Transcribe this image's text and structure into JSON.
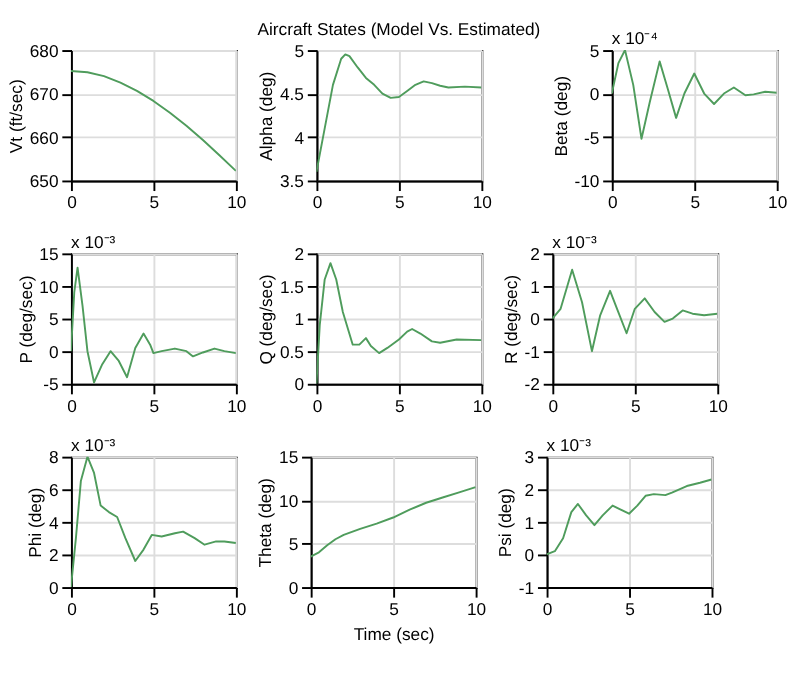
{
  "chart_data": [
    {
      "type": "line",
      "ylabel": "Vt (ft/sec)",
      "xlim": [
        0,
        10
      ],
      "xticks": [
        0,
        5,
        10
      ],
      "ylim": [
        650,
        680
      ],
      "yticks": [
        650,
        660,
        670,
        680
      ],
      "grid": true,
      "x": [
        0,
        1,
        2,
        3,
        4,
        5,
        6,
        7,
        8,
        9,
        10
      ],
      "series": [
        {
          "color": "#4f9c5c",
          "values": [
            675.2,
            674.9,
            674,
            672.5,
            670.6,
            668.3,
            665.6,
            662.6,
            659.3,
            655.8,
            652.2
          ]
        }
      ]
    },
    {
      "type": "line",
      "title": "Aircraft States (Model Vs. Estimated)",
      "ylabel": "Alpha (deg)",
      "xlim": [
        0,
        10
      ],
      "xticks": [
        0,
        5,
        10
      ],
      "ylim": [
        3.5,
        5
      ],
      "yticks": [
        3.5,
        4,
        4.5,
        5
      ],
      "grid": true,
      "x": [
        0,
        0.5,
        1,
        1.5,
        1.75,
        2,
        2.5,
        3,
        3.5,
        4,
        4.5,
        5,
        5.5,
        6,
        6.5,
        7,
        7.5,
        8,
        9,
        10
      ],
      "series": [
        {
          "color": "#4f9c5c",
          "values": [
            3.6,
            4.1,
            4.6,
            4.9,
            4.95,
            4.93,
            4.8,
            4.68,
            4.6,
            4.5,
            4.45,
            4.46,
            4.53,
            4.6,
            4.64,
            4.62,
            4.59,
            4.57,
            4.58,
            4.57
          ]
        }
      ]
    },
    {
      "type": "line",
      "ylabel": "Beta (deg)",
      "annotations": [
        "x 10⁻⁴"
      ],
      "xlim": [
        0,
        10
      ],
      "xticks": [
        0,
        5,
        10
      ],
      "ylim": [
        -10,
        5
      ],
      "yticks": [
        -10,
        -5,
        0,
        5
      ],
      "grid": true,
      "x": [
        0,
        0.4,
        0.8,
        1.3,
        1.8,
        2.3,
        2.9,
        3.4,
        3.9,
        4.4,
        5,
        5.6,
        6.2,
        6.8,
        7.4,
        8.1,
        8.6,
        9.3,
        10
      ],
      "series": [
        {
          "color": "#4f9c5c",
          "values": [
            0,
            3.5,
            5,
            1,
            -5.2,
            -1,
            3.7,
            0.5,
            -2.8,
            0,
            2.3,
            0,
            -1.2,
            0,
            0.7,
            -0.2,
            -0.1,
            0.2,
            0.1
          ]
        }
      ]
    },
    {
      "type": "line",
      "ylabel": "P (deg/sec)",
      "annotations": [
        "x 10⁻³"
      ],
      "xlim": [
        0,
        10
      ],
      "xticks": [
        0,
        5,
        10
      ],
      "ylim": [
        -5,
        15
      ],
      "yticks": [
        -5,
        0,
        5,
        10,
        15
      ],
      "grid": true,
      "x": [
        0,
        0.2,
        0.4,
        0.7,
        1,
        1.4,
        1.9,
        2.4,
        2.9,
        3.4,
        3.9,
        4.4,
        4.8,
        5,
        5.5,
        6.3,
        7,
        7.4,
        8,
        8.7,
        9.3,
        10
      ],
      "series": [
        {
          "color": "#4f9c5c",
          "values": [
            0,
            9,
            12.8,
            7,
            0,
            -4.8,
            -2,
            0,
            -1.5,
            -4,
            0.5,
            2.7,
            1,
            -0.3,
            0,
            0.4,
            0,
            -0.8,
            -0.2,
            0.4,
            0,
            -0.3
          ]
        }
      ]
    },
    {
      "type": "line",
      "ylabel": "Q (deg/sec)",
      "xlim": [
        0,
        10
      ],
      "xticks": [
        0,
        5,
        10
      ],
      "ylim": [
        0,
        2
      ],
      "yticks": [
        0,
        0.5,
        1,
        1.5,
        2
      ],
      "grid": true,
      "x": [
        0,
        0.2,
        0.5,
        0.85,
        1.2,
        1.6,
        2.2,
        2.6,
        3,
        3.3,
        3.8,
        4.3,
        5,
        5.5,
        5.8,
        6.3,
        7,
        7.5,
        8.5,
        10
      ],
      "series": [
        {
          "color": "#4f9c5c",
          "values": [
            0,
            0.9,
            1.6,
            1.85,
            1.6,
            1.1,
            0.6,
            0.6,
            0.7,
            0.58,
            0.47,
            0.55,
            0.68,
            0.8,
            0.84,
            0.77,
            0.65,
            0.63,
            0.68,
            0.67
          ]
        }
      ]
    },
    {
      "type": "line",
      "ylabel": "R (deg/sec)",
      "annotations": [
        "x 10⁻³"
      ],
      "xlim": [
        0,
        10
      ],
      "xticks": [
        0,
        5,
        10
      ],
      "ylim": [
        -2,
        2
      ],
      "yticks": [
        -2,
        -1,
        0,
        1,
        2
      ],
      "grid": true,
      "x": [
        0,
        0.5,
        1.2,
        1.8,
        2.4,
        2.9,
        3.5,
        4,
        4.5,
        5,
        5.6,
        6.2,
        6.8,
        7.3,
        7.9,
        8.5,
        9.2,
        10
      ],
      "series": [
        {
          "color": "#4f9c5c",
          "values": [
            0,
            0.3,
            1.5,
            0.5,
            -1,
            0.1,
            0.85,
            0.2,
            -0.45,
            0.3,
            0.62,
            0.2,
            -0.1,
            0,
            0.25,
            0.15,
            0.1,
            0.15
          ]
        }
      ]
    },
    {
      "type": "line",
      "ylabel": "Phi (deg)",
      "annotations": [
        "x 10⁻³"
      ],
      "xlim": [
        0,
        10
      ],
      "xticks": [
        0,
        5,
        10
      ],
      "ylim": [
        0,
        8
      ],
      "yticks": [
        0,
        2,
        4,
        6,
        8
      ],
      "grid": true,
      "x": [
        0,
        0.3,
        0.6,
        1,
        1.4,
        1.8,
        2.3,
        2.8,
        3.3,
        3.9,
        4.4,
        4.9,
        5.5,
        6.3,
        6.8,
        7.5,
        8.1,
        8.8,
        9.3,
        10
      ],
      "series": [
        {
          "color": "#4f9c5c",
          "values": [
            0,
            3,
            6.5,
            8,
            7,
            5,
            4.6,
            4.3,
            3,
            1.6,
            2.3,
            3.2,
            3.1,
            3.3,
            3.4,
            3,
            2.6,
            2.8,
            2.8,
            2.7
          ]
        }
      ]
    },
    {
      "type": "line",
      "ylabel": "Theta (deg)",
      "xlabel": "Time (sec)",
      "xlim": [
        0,
        10
      ],
      "xticks": [
        0,
        5,
        10
      ],
      "ylim": [
        0,
        15
      ],
      "yticks": [
        0,
        5,
        10,
        15
      ],
      "grid": true,
      "x": [
        0,
        0.5,
        1,
        1.5,
        2,
        3,
        4,
        5,
        6,
        7,
        8,
        9,
        10
      ],
      "series": [
        {
          "color": "#4f9c5c",
          "values": [
            3.5,
            4,
            4.8,
            5.5,
            6,
            6.7,
            7.3,
            8,
            8.9,
            9.7,
            10.3,
            10.9,
            11.5
          ]
        }
      ]
    },
    {
      "type": "line",
      "ylabel": "Psi (deg)",
      "annotations": [
        "x 10⁻³"
      ],
      "xlim": [
        0,
        10
      ],
      "xticks": [
        0,
        5,
        10
      ],
      "ylim": [
        -1,
        3
      ],
      "yticks": [
        -1,
        0,
        1,
        2,
        3
      ],
      "grid": true,
      "x": [
        0,
        0.5,
        1,
        1.5,
        1.9,
        2.4,
        2.9,
        3.4,
        4,
        4.4,
        5,
        5.5,
        6,
        6.5,
        7.2,
        7.6,
        8.5,
        9.3,
        10
      ],
      "series": [
        {
          "color": "#4f9c5c",
          "values": [
            0,
            0.1,
            0.5,
            1.3,
            1.55,
            1.2,
            0.9,
            1.2,
            1.5,
            1.4,
            1.25,
            1.5,
            1.8,
            1.85,
            1.82,
            1.9,
            2.1,
            2.2,
            2.3
          ]
        }
      ]
    }
  ]
}
